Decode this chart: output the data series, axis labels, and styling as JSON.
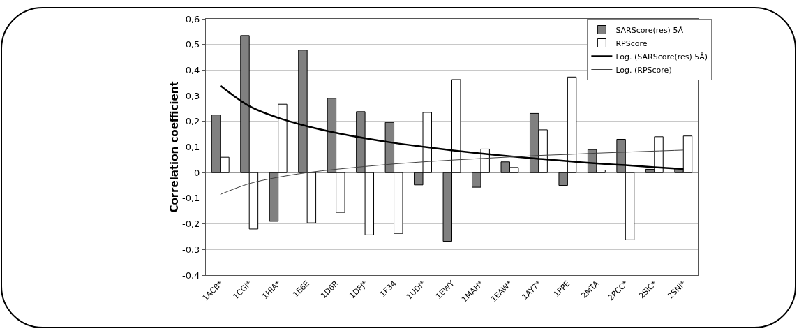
{
  "chart_data": {
    "type": "bar",
    "ylabel": "Correlation coefficient",
    "categories": [
      "1ACB*",
      "1CGI*",
      "1HIA*",
      "1E6E",
      "1D6R",
      "1DFJ*",
      "1F34",
      "1UDI*",
      "1EWY",
      "1MAH*",
      "1EAW*",
      "1AY7*",
      "1PPE",
      "2MTA",
      "2PCC*",
      "2SIC*",
      "2SNI*"
    ],
    "series": [
      {
        "name": "SARScore(res) 5Å",
        "color": "#808080",
        "values": [
          0.225,
          0.535,
          -0.19,
          0.478,
          0.29,
          0.238,
          0.196,
          -0.048,
          -0.268,
          -0.057,
          0.042,
          0.231,
          -0.05,
          0.09,
          0.13,
          0.013,
          0.016
        ]
      },
      {
        "name": "RPScore",
        "color": "#ffffff",
        "values": [
          0.06,
          -0.22,
          0.267,
          -0.196,
          -0.155,
          -0.243,
          -0.237,
          0.235,
          0.363,
          0.092,
          0.02,
          0.167,
          0.373,
          0.01,
          -0.262,
          0.14,
          0.143
        ]
      },
      {
        "name": "Log. (SARScore(res) 5Å)",
        "type": "line",
        "color": "#000000",
        "values": [
          0.34,
          0.26,
          0.214,
          0.181,
          0.155,
          0.134,
          0.116,
          0.101,
          0.087,
          0.075,
          0.064,
          0.054,
          0.045,
          0.036,
          0.029,
          0.021,
          0.014
        ]
      },
      {
        "name": "Log. (RPScore)",
        "type": "line",
        "color": "#404040",
        "values": [
          -0.085,
          -0.043,
          -0.018,
          0.0,
          0.013,
          0.024,
          0.034,
          0.042,
          0.049,
          0.055,
          0.061,
          0.067,
          0.071,
          0.076,
          0.08,
          0.084,
          0.088
        ]
      }
    ],
    "ylim": [
      -0.4,
      0.6
    ],
    "yticks": [
      {
        "value": -0.4,
        "label": "-0,4"
      },
      {
        "value": -0.3,
        "label": "-0,3"
      },
      {
        "value": -0.2,
        "label": "-0,2"
      },
      {
        "value": -0.1,
        "label": "-0,1"
      },
      {
        "value": 0,
        "label": "0"
      },
      {
        "value": 0.1,
        "label": "0,1"
      },
      {
        "value": 0.2,
        "label": "0,2"
      },
      {
        "value": 0.3,
        "label": "0,3"
      },
      {
        "value": 0.4,
        "label": "0,4"
      },
      {
        "value": 0.5,
        "label": "0,5"
      },
      {
        "value": 0.6,
        "label": "0,6"
      }
    ],
    "grid": "y",
    "legend": "top right",
    "marker": "none",
    "line_style": "solid"
  }
}
